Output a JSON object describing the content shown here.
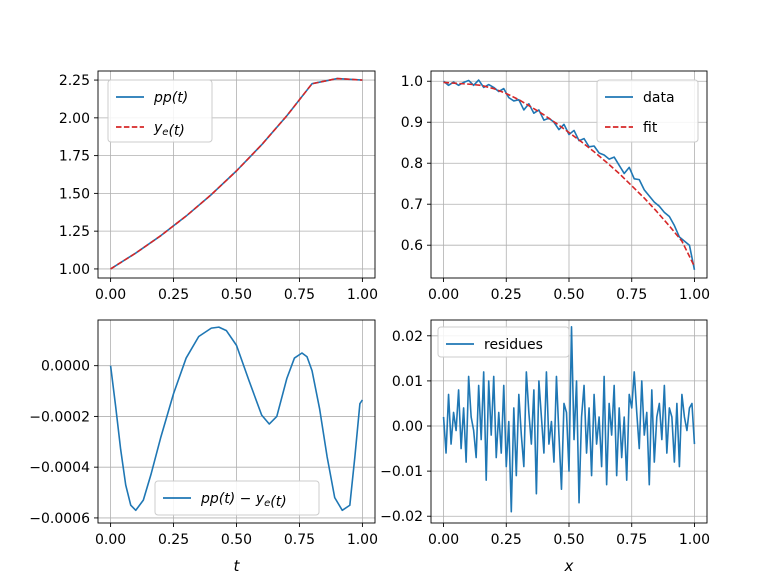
{
  "chart_data": [
    {
      "id": "tl",
      "type": "line",
      "xlabel": "",
      "ylabel": "",
      "xlim": [
        -0.05,
        1.05
      ],
      "ylim": [
        0.94,
        2.31
      ],
      "xticks": [
        0.0,
        0.25,
        0.5,
        0.75,
        1.0
      ],
      "xtick_labels": [
        "0.00",
        "0.25",
        "0.50",
        "0.75",
        "1.00"
      ],
      "yticks": [
        1.0,
        1.25,
        1.5,
        1.75,
        2.0,
        2.25
      ],
      "ytick_labels": [
        "1.00",
        "1.25",
        "1.50",
        "1.75",
        "2.00",
        "2.25"
      ],
      "grid": true,
      "legend_position": "upper-left",
      "series": [
        {
          "name": "pp(t)",
          "legend_parts": [
            {
              "t": "pp",
              "sub": ""
            },
            {
              "t": "(t)",
              "sub": ""
            }
          ],
          "color": "#1f77b4",
          "dash": "solid",
          "x": [
            0,
            0.1,
            0.2,
            0.3,
            0.4,
            0.5,
            0.6,
            0.7,
            0.8,
            0.9,
            1.0
          ],
          "y": [
            1.0,
            1.105,
            1.221,
            1.35,
            1.492,
            1.649,
            1.822,
            2.014,
            2.226,
            2.26,
            2.25
          ]
        },
        {
          "name": "y_e(t)",
          "legend_parts": [
            {
              "t": "y",
              "sub": "e"
            },
            {
              "t": "(t)",
              "sub": ""
            }
          ],
          "color": "#d62728",
          "dash": "dashed",
          "x": [
            0,
            0.1,
            0.2,
            0.3,
            0.4,
            0.5,
            0.6,
            0.7,
            0.8,
            0.9,
            1.0
          ],
          "y": [
            1.0,
            1.105,
            1.221,
            1.35,
            1.492,
            1.649,
            1.822,
            2.014,
            2.226,
            2.26,
            2.25
          ]
        }
      ]
    },
    {
      "id": "tr",
      "type": "line",
      "xlabel": "",
      "ylabel": "",
      "xlim": [
        -0.05,
        1.05
      ],
      "ylim": [
        0.52,
        1.025
      ],
      "xticks": [
        0.0,
        0.25,
        0.5,
        0.75,
        1.0
      ],
      "xtick_labels": [
        "0.00",
        "0.25",
        "0.50",
        "0.75",
        "1.00"
      ],
      "yticks": [
        0.6,
        0.7,
        0.8,
        0.9,
        1.0
      ],
      "ytick_labels": [
        "0.6",
        "0.7",
        "0.8",
        "0.9",
        "1.0"
      ],
      "grid": true,
      "legend_position": "upper-right",
      "series": [
        {
          "name": "data",
          "legend_parts": [
            {
              "t": "data",
              "sub": ""
            }
          ],
          "color": "#1f77b4",
          "dash": "solid",
          "x": [
            0,
            0.02,
            0.04,
            0.06,
            0.08,
            0.1,
            0.12,
            0.14,
            0.16,
            0.18,
            0.2,
            0.22,
            0.24,
            0.26,
            0.28,
            0.3,
            0.32,
            0.34,
            0.36,
            0.38,
            0.4,
            0.42,
            0.44,
            0.46,
            0.48,
            0.5,
            0.52,
            0.54,
            0.56,
            0.58,
            0.6,
            0.62,
            0.64,
            0.66,
            0.68,
            0.7,
            0.72,
            0.74,
            0.76,
            0.78,
            0.8,
            0.82,
            0.84,
            0.86,
            0.88,
            0.9,
            0.92,
            0.94,
            0.96,
            0.98,
            1.0
          ],
          "y": [
            1.0,
            0.99,
            0.998,
            0.99,
            0.997,
            1.002,
            0.99,
            1.003,
            0.985,
            0.992,
            0.985,
            0.975,
            0.982,
            0.96,
            0.952,
            0.955,
            0.93,
            0.945,
            0.922,
            0.93,
            0.905,
            0.91,
            0.9,
            0.882,
            0.895,
            0.87,
            0.88,
            0.855,
            0.86,
            0.84,
            0.842,
            0.825,
            0.82,
            0.81,
            0.815,
            0.795,
            0.775,
            0.79,
            0.762,
            0.76,
            0.735,
            0.72,
            0.705,
            0.695,
            0.68,
            0.67,
            0.648,
            0.62,
            0.61,
            0.6,
            0.54
          ]
        },
        {
          "name": "fit",
          "legend_parts": [
            {
              "t": "fit",
              "sub": ""
            }
          ],
          "color": "#d62728",
          "dash": "dashed",
          "x": [
            0,
            0.05,
            0.1,
            0.15,
            0.2,
            0.25,
            0.3,
            0.35,
            0.4,
            0.45,
            0.5,
            0.55,
            0.6,
            0.65,
            0.7,
            0.75,
            0.8,
            0.85,
            0.9,
            0.95,
            1.0
          ],
          "y": [
            0.997,
            0.995,
            0.993,
            0.99,
            0.982,
            0.97,
            0.955,
            0.937,
            0.918,
            0.897,
            0.875,
            0.852,
            0.828,
            0.802,
            0.775,
            0.745,
            0.715,
            0.682,
            0.647,
            0.61,
            0.548
          ]
        }
      ]
    },
    {
      "id": "bl",
      "type": "line",
      "xlabel": "t",
      "ylabel": "",
      "xlim": [
        -0.05,
        1.05
      ],
      "ylim": [
        -0.00062,
        0.00018
      ],
      "xticks": [
        0.0,
        0.25,
        0.5,
        0.75,
        1.0
      ],
      "xtick_labels": [
        "0.00",
        "0.25",
        "0.50",
        "0.75",
        "1.00"
      ],
      "yticks": [
        0.0,
        -0.0002,
        -0.0004,
        -0.0006
      ],
      "ytick_labels": [
        "0.0000",
        "−0.0002",
        "−0.0004",
        "−0.0006"
      ],
      "grid": true,
      "legend_position": "lower-center",
      "series": [
        {
          "name": "pp(t) − y_e(t)",
          "legend_parts": [
            {
              "t": "pp",
              "sub": ""
            },
            {
              "t": "(t) − ",
              "sub": ""
            },
            {
              "t": "y",
              "sub": "e"
            },
            {
              "t": "(t)",
              "sub": ""
            }
          ],
          "color": "#1f77b4",
          "dash": "solid",
          "x": [
            0.0,
            0.02,
            0.04,
            0.06,
            0.08,
            0.1,
            0.13,
            0.16,
            0.2,
            0.25,
            0.3,
            0.35,
            0.4,
            0.43,
            0.46,
            0.5,
            0.55,
            0.6,
            0.63,
            0.66,
            0.7,
            0.73,
            0.76,
            0.78,
            0.8,
            0.83,
            0.86,
            0.89,
            0.92,
            0.95,
            0.97,
            0.99,
            1.0
          ],
          "y": [
            0.0,
            -0.00016,
            -0.00033,
            -0.00047,
            -0.00055,
            -0.00057,
            -0.00053,
            -0.00043,
            -0.00028,
            -0.00011,
            3e-05,
            0.000115,
            0.000148,
            0.000152,
            0.000138,
            8e-05,
            -6e-05,
            -0.000195,
            -0.00023,
            -0.0002,
            -5e-05,
            3e-05,
            5e-05,
            3.5e-05,
            -2e-05,
            -0.00017,
            -0.00036,
            -0.00052,
            -0.00057,
            -0.00055,
            -0.00036,
            -0.00015,
            -0.000135
          ]
        }
      ]
    },
    {
      "id": "br",
      "type": "line",
      "xlabel": "x",
      "ylabel": "",
      "xlim": [
        -0.05,
        1.05
      ],
      "ylim": [
        -0.0215,
        0.0235
      ],
      "xticks": [
        0.0,
        0.25,
        0.5,
        0.75,
        1.0
      ],
      "xtick_labels": [
        "0.00",
        "0.25",
        "0.50",
        "0.75",
        "1.00"
      ],
      "yticks": [
        0.02,
        0.01,
        0.0,
        -0.01,
        -0.02
      ],
      "ytick_labels": [
        "0.02",
        "0.01",
        "0.00",
        "−0.01",
        "−0.02"
      ],
      "grid": true,
      "legend_position": "upper-left",
      "series": [
        {
          "name": "residues",
          "legend_parts": [
            {
              "t": "residues",
              "sub": ""
            }
          ],
          "color": "#1f77b4",
          "dash": "solid",
          "x": [
            0.0,
            0.01,
            0.02,
            0.03,
            0.04,
            0.05,
            0.06,
            0.07,
            0.08,
            0.09,
            0.1,
            0.11,
            0.12,
            0.13,
            0.14,
            0.15,
            0.16,
            0.17,
            0.18,
            0.19,
            0.2,
            0.21,
            0.22,
            0.23,
            0.24,
            0.25,
            0.26,
            0.27,
            0.28,
            0.29,
            0.3,
            0.31,
            0.32,
            0.33,
            0.34,
            0.35,
            0.36,
            0.37,
            0.38,
            0.39,
            0.4,
            0.41,
            0.42,
            0.43,
            0.44,
            0.45,
            0.46,
            0.47,
            0.48,
            0.49,
            0.5,
            0.51,
            0.52,
            0.53,
            0.54,
            0.55,
            0.56,
            0.57,
            0.58,
            0.59,
            0.6,
            0.61,
            0.62,
            0.63,
            0.64,
            0.65,
            0.66,
            0.67,
            0.68,
            0.69,
            0.7,
            0.71,
            0.72,
            0.73,
            0.74,
            0.75,
            0.76,
            0.77,
            0.78,
            0.79,
            0.8,
            0.81,
            0.82,
            0.83,
            0.84,
            0.85,
            0.86,
            0.87,
            0.88,
            0.89,
            0.9,
            0.91,
            0.92,
            0.93,
            0.94,
            0.95,
            0.96,
            0.97,
            0.98,
            0.99,
            1.0
          ],
          "y": [
            0.002,
            -0.006,
            0.007,
            -0.004,
            0.003,
            -0.001,
            0.008,
            -0.005,
            0.004,
            -0.008,
            0.011,
            0.002,
            -0.001,
            -0.007,
            0.009,
            -0.003,
            0.012,
            -0.012,
            0.01,
            -0.002,
            0.011,
            -0.007,
            0.003,
            -0.006,
            0.009,
            -0.009,
            0.001,
            -0.019,
            0.004,
            -0.011,
            0.007,
            -0.002,
            -0.009,
            0.012,
            0.003,
            -0.004,
            0.008,
            -0.015,
            0.01,
            0.002,
            -0.006,
            0.012,
            -0.004,
            0.001,
            -0.008,
            0.011,
            -0.002,
            -0.014,
            0.005,
            0.003,
            -0.01,
            0.022,
            -0.003,
            0.01,
            -0.017,
            0.002,
            0.009,
            -0.006,
            0.004,
            -0.011,
            0.007,
            -0.004,
            0.002,
            -0.009,
            0.011,
            -0.013,
            0.005,
            -0.002,
            0.009,
            -0.011,
            0.004,
            -0.007,
            0.002,
            -0.012,
            0.007,
            0.004,
            0.012,
            0.003,
            -0.005,
            0.01,
            -0.002,
            0.003,
            -0.013,
            0.008,
            -0.008,
            0.002,
            0.005,
            -0.003,
            0.009,
            -0.006,
            0.004,
            0.002,
            -0.008,
            0.005,
            -0.009,
            0.007,
            0.002,
            -0.001,
            0.004,
            0.005,
            -0.004
          ]
        }
      ]
    }
  ]
}
